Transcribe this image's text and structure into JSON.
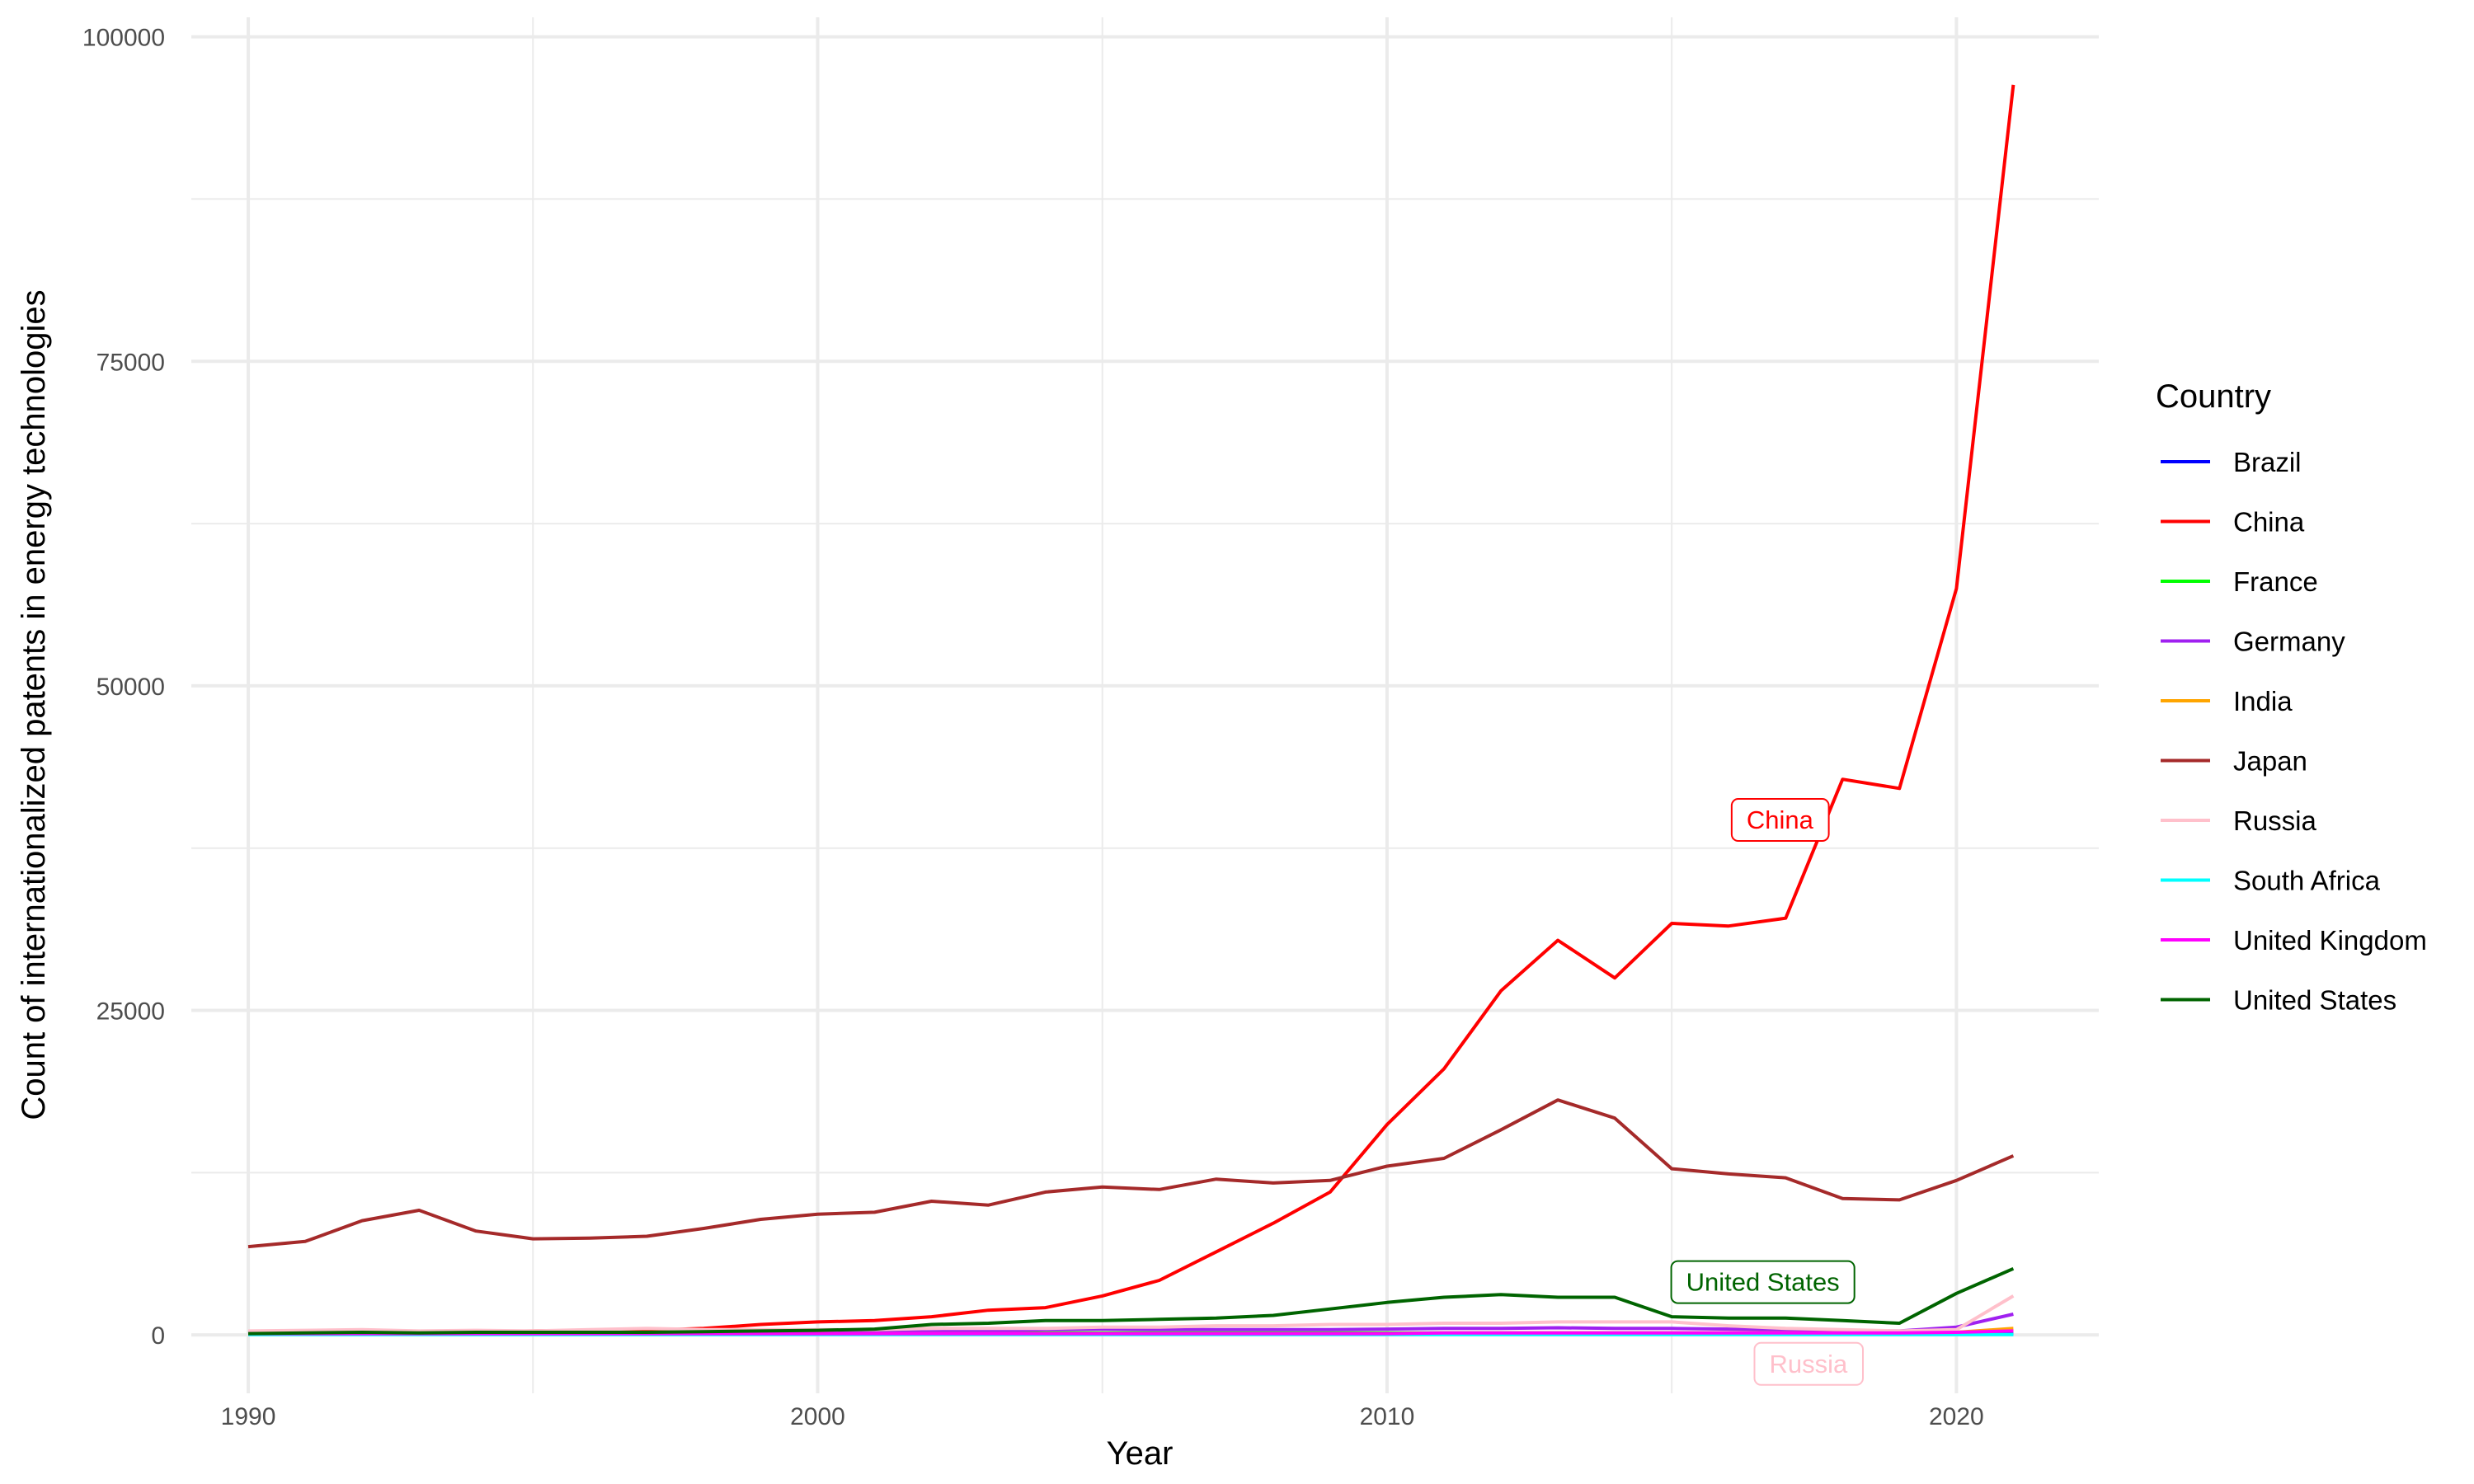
{
  "chart_data": {
    "type": "line",
    "xlabel": "Year",
    "ylabel": "Count of internationalized patents in energy technologies",
    "xlim": [
      1989,
      2022.5
    ],
    "ylim": [
      -4500,
      101500
    ],
    "x_ticks": [
      1990,
      2000,
      2010,
      2020
    ],
    "x_tick_labels": [
      "1990",
      "2000",
      "2010",
      "2020"
    ],
    "y_ticks": [
      0,
      25000,
      50000,
      75000,
      100000
    ],
    "y_tick_labels": [
      "0",
      "25000",
      "50000",
      "75000",
      "100000"
    ],
    "grid": true,
    "legend": {
      "title": "Country",
      "placement": "right"
    },
    "x": [
      1990,
      1991,
      1992,
      1993,
      1994,
      1995,
      1996,
      1997,
      1998,
      1999,
      2000,
      2001,
      2002,
      2003,
      2004,
      2005,
      2006,
      2007,
      2008,
      2009,
      2010,
      2011,
      2012,
      2013,
      2014,
      2015,
      2016,
      2017,
      2018,
      2019,
      2020,
      2021
    ],
    "series": [
      {
        "name": "Brazil",
        "color": "#0000FF",
        "values": [
          50,
          50,
          50,
          50,
          50,
          50,
          50,
          50,
          50,
          50,
          50,
          50,
          60,
          60,
          60,
          60,
          60,
          60,
          70,
          70,
          70,
          70,
          70,
          70,
          70,
          70,
          70,
          70,
          70,
          70,
          80,
          100
        ]
      },
      {
        "name": "China",
        "color": "#FF0000",
        "values": [
          200,
          250,
          300,
          200,
          250,
          300,
          350,
          350,
          500,
          800,
          1000,
          1100,
          1400,
          1900,
          2100,
          3000,
          4200,
          6400,
          8600,
          11000,
          16200,
          20500,
          26500,
          30400,
          27500,
          31700,
          31500,
          32100,
          42800,
          42100,
          57500,
          96300
        ]
      },
      {
        "name": "France",
        "color": "#00FF00",
        "values": [
          150,
          150,
          150,
          150,
          150,
          150,
          150,
          150,
          150,
          150,
          150,
          150,
          150,
          150,
          150,
          150,
          150,
          150,
          150,
          150,
          150,
          150,
          150,
          150,
          150,
          150,
          150,
          150,
          150,
          150,
          200,
          300
        ]
      },
      {
        "name": "Germany",
        "color": "#A020F0",
        "values": [
          150,
          150,
          150,
          150,
          150,
          150,
          150,
          150,
          150,
          150,
          150,
          200,
          250,
          300,
          400,
          450,
          400,
          400,
          400,
          400,
          450,
          500,
          500,
          550,
          500,
          500,
          450,
          400,
          350,
          300,
          600,
          1600
        ]
      },
      {
        "name": "India",
        "color": "#FFA500",
        "values": [
          50,
          50,
          50,
          50,
          50,
          50,
          50,
          50,
          50,
          50,
          100,
          100,
          100,
          100,
          100,
          100,
          100,
          100,
          100,
          100,
          100,
          150,
          150,
          150,
          150,
          150,
          150,
          150,
          150,
          150,
          200,
          500
        ]
      },
      {
        "name": "Japan",
        "color": "#A52A2A",
        "values": [
          6800,
          7200,
          8800,
          9600,
          8000,
          7400,
          7450,
          7600,
          8200,
          8900,
          9300,
          9450,
          10300,
          10000,
          11000,
          11400,
          11200,
          12000,
          11700,
          11900,
          13000,
          13600,
          15800,
          18100,
          16700,
          12800,
          12400,
          12100,
          10500,
          10400,
          11900,
          13800
        ]
      },
      {
        "name": "Russia",
        "color": "#FFC0CB",
        "values": [
          300,
          350,
          400,
          300,
          350,
          300,
          400,
          500,
          400,
          400,
          400,
          400,
          500,
          500,
          500,
          600,
          600,
          700,
          700,
          800,
          800,
          900,
          900,
          1000,
          1000,
          1000,
          700,
          500,
          400,
          300,
          400,
          3000
        ]
      },
      {
        "name": "South Africa",
        "color": "#00FFFF",
        "values": [
          20,
          20,
          20,
          20,
          20,
          20,
          20,
          20,
          20,
          20,
          20,
          20,
          20,
          20,
          20,
          20,
          20,
          20,
          20,
          20,
          20,
          20,
          20,
          20,
          20,
          20,
          20,
          20,
          20,
          20,
          20,
          30
        ]
      },
      {
        "name": "United Kingdom",
        "color": "#FF00FF",
        "values": [
          100,
          100,
          100,
          100,
          100,
          100,
          100,
          100,
          100,
          100,
          100,
          100,
          100,
          100,
          100,
          100,
          100,
          100,
          100,
          100,
          100,
          150,
          150,
          150,
          150,
          150,
          150,
          150,
          150,
          150,
          200,
          300
        ]
      },
      {
        "name": "United States",
        "color": "#006400",
        "values": [
          100,
          150,
          200,
          150,
          200,
          200,
          200,
          200,
          250,
          300,
          350,
          450,
          800,
          900,
          1100,
          1100,
          1200,
          1300,
          1500,
          2000,
          2500,
          2900,
          3100,
          2900,
          2900,
          1400,
          1300,
          1300,
          1100,
          900,
          3200,
          5100
        ]
      }
    ],
    "annotations": [
      {
        "text": "China",
        "x": 2016.9,
        "y": 39700,
        "color": "#FF0000"
      },
      {
        "text": "United States",
        "x": 2016.6,
        "y": 4100,
        "color": "#006400"
      },
      {
        "text": "Russia",
        "x": 2017.4,
        "y": -2200,
        "color": "#FFC0CB"
      }
    ]
  }
}
